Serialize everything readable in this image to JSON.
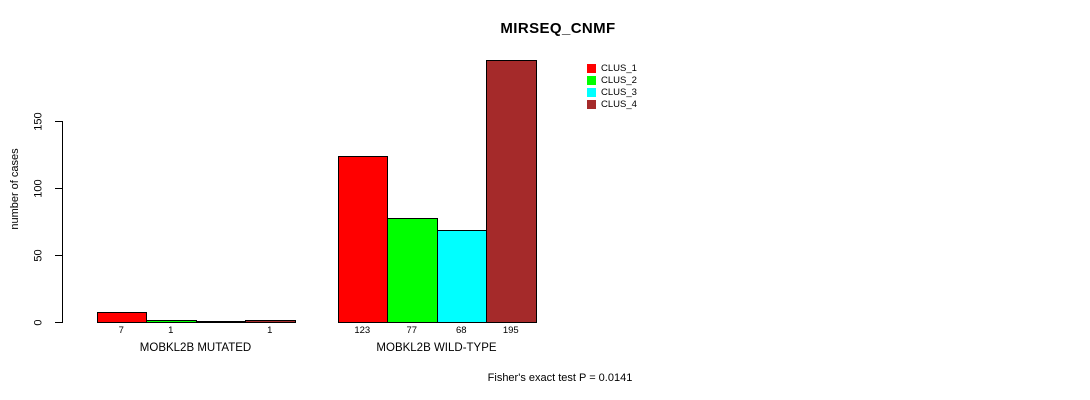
{
  "chart_data": {
    "type": "bar",
    "title": "MIRSEQ_CNMF",
    "ylabel": "number of cases",
    "xlabel": "",
    "ylim": [
      0,
      150
    ],
    "yticks": [
      0,
      50,
      100,
      150
    ],
    "grid": false,
    "legend_position": "top-right",
    "categories": [
      "MOBKL2B MUTATED",
      "MOBKL2B WILD-TYPE"
    ],
    "series": [
      {
        "name": "CLUS_1",
        "color": "#ff0000",
        "values": [
          7,
          123
        ]
      },
      {
        "name": "CLUS_2",
        "color": "#00ff00",
        "values": [
          1,
          77
        ]
      },
      {
        "name": "CLUS_3",
        "color": "#00ffff",
        "values": [
          0,
          68
        ]
      },
      {
        "name": "CLUS_4",
        "color": "#a52a2a",
        "values": [
          1,
          195
        ]
      }
    ],
    "bar_value_labels": [
      [
        "7",
        "1",
        "",
        "1"
      ],
      [
        "123",
        "77",
        "68",
        "195"
      ]
    ],
    "annotation": "Fisher's exact test P = 0.0141",
    "axis_color": "#000000",
    "background": "#ffffff"
  }
}
